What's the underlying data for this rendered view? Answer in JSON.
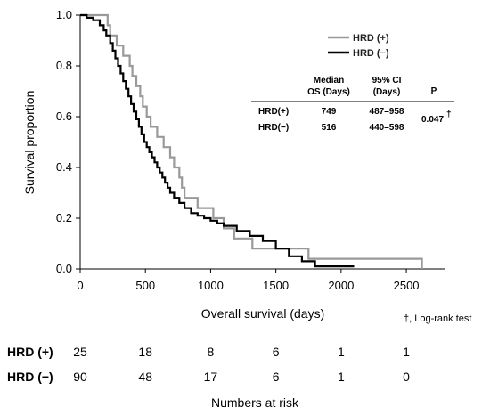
{
  "chart_data": {
    "type": "line",
    "subtype": "kaplan-meier",
    "ylabel": "Survival proportion",
    "xlabel": "Overall survival (days)",
    "xlim": [
      0,
      2800
    ],
    "ylim": [
      0,
      1.0
    ],
    "x_ticks": [
      "0",
      "500",
      "1000",
      "1500",
      "2000",
      "2500"
    ],
    "y_ticks": [
      "0.0",
      "0.2",
      "0.4",
      "0.6",
      "0.8",
      "1.0"
    ],
    "legend_position": "top-right",
    "series": [
      {
        "name": "HRD (+)",
        "color": "#999999",
        "x": [
          0,
          210,
          230,
          280,
          330,
          380,
          400,
          430,
          460,
          480,
          510,
          540,
          590,
          640,
          690,
          720,
          760,
          780,
          800,
          840,
          900,
          1000,
          1020,
          1100,
          1180,
          1250,
          1320,
          1750,
          1900,
          2620
        ],
        "y": [
          1.0,
          0.96,
          0.92,
          0.88,
          0.84,
          0.8,
          0.76,
          0.72,
          0.68,
          0.64,
          0.6,
          0.56,
          0.52,
          0.48,
          0.44,
          0.4,
          0.36,
          0.32,
          0.28,
          0.28,
          0.24,
          0.24,
          0.2,
          0.16,
          0.12,
          0.12,
          0.08,
          0.04,
          0.04,
          0.0
        ]
      },
      {
        "name": "HRD (−)",
        "color": "#000000",
        "x": [
          0,
          50,
          100,
          150,
          180,
          200,
          230,
          250,
          270,
          290,
          310,
          330,
          350,
          370,
          390,
          410,
          430,
          450,
          470,
          490,
          510,
          530,
          550,
          570,
          590,
          610,
          630,
          650,
          670,
          690,
          720,
          760,
          800,
          850,
          900,
          950,
          1000,
          1050,
          1100,
          1200,
          1300,
          1400,
          1500,
          1600,
          1700,
          1800,
          2100
        ],
        "y": [
          1.0,
          0.99,
          0.98,
          0.96,
          0.94,
          0.92,
          0.89,
          0.86,
          0.83,
          0.8,
          0.77,
          0.74,
          0.71,
          0.68,
          0.65,
          0.62,
          0.59,
          0.56,
          0.53,
          0.5,
          0.48,
          0.46,
          0.44,
          0.42,
          0.4,
          0.38,
          0.36,
          0.34,
          0.32,
          0.3,
          0.28,
          0.26,
          0.24,
          0.22,
          0.21,
          0.2,
          0.19,
          0.18,
          0.17,
          0.15,
          0.13,
          0.11,
          0.08,
          0.05,
          0.03,
          0.01,
          0.01
        ]
      }
    ],
    "stats_table": {
      "headers": {
        "median_line1": "Median",
        "median_line2": "OS (Days)",
        "ci_line1": "95% CI",
        "ci_line2": "(Days)",
        "p": "P"
      },
      "rows": [
        {
          "group": "HRD(+)",
          "median": "749",
          "ci": "487–958"
        },
        {
          "group": "HRD(−)",
          "median": "516",
          "ci": "440–598"
        }
      ],
      "p_value": "0.047",
      "p_marker": "†"
    },
    "footnote": "†, Log-rank test"
  },
  "risk_table": {
    "title": "Numbers at risk",
    "rows": [
      {
        "label": "HRD (+)",
        "values": [
          "25",
          "18",
          "8",
          "6",
          "1",
          "1"
        ]
      },
      {
        "label": "HRD (−)",
        "values": [
          "90",
          "48",
          "17",
          "6",
          "1",
          "0"
        ]
      }
    ]
  }
}
